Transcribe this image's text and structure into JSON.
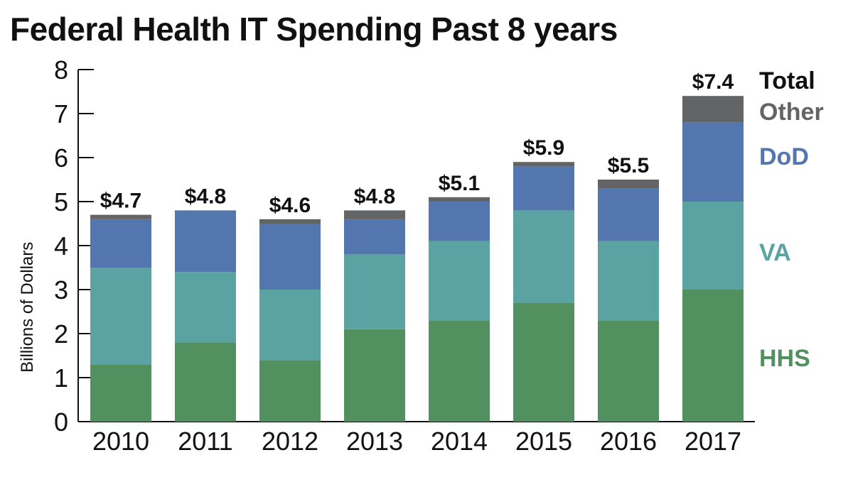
{
  "chart_data": {
    "type": "bar",
    "stacked": true,
    "title": "Federal Health IT Spending Past 8 years",
    "xlabel": "",
    "ylabel": "Billions of Dollars",
    "ylim": [
      0,
      8
    ],
    "yticks": [
      "0",
      "1",
      "2",
      "3",
      "4",
      "5",
      "6",
      "7",
      "8"
    ],
    "categories": [
      "2010",
      "2011",
      "2012",
      "2013",
      "2014",
      "2015",
      "2016",
      "2017"
    ],
    "series": [
      {
        "name": "HHS",
        "color": "#52905f",
        "values": [
          1.3,
          1.8,
          1.4,
          2.1,
          2.3,
          2.7,
          2.3,
          3.0
        ]
      },
      {
        "name": "VA",
        "color": "#5ba3a2",
        "values": [
          2.2,
          1.6,
          1.6,
          1.7,
          1.8,
          2.1,
          1.8,
          2.0
        ]
      },
      {
        "name": "DoD",
        "color": "#5476ae",
        "values": [
          1.1,
          1.4,
          1.5,
          0.8,
          0.9,
          1.0,
          1.2,
          1.8
        ]
      },
      {
        "name": "Other",
        "color": "#636466",
        "values": [
          0.1,
          0.0,
          0.1,
          0.2,
          0.1,
          0.1,
          0.2,
          0.6
        ]
      }
    ],
    "totals_label": "Total",
    "totals": [
      "$4.7",
      "$4.8",
      "$4.6",
      "$4.8",
      "$5.1",
      "$5.9",
      "$5.5",
      "$7.4"
    ],
    "total_values": [
      4.7,
      4.8,
      4.6,
      4.8,
      5.1,
      5.9,
      5.5,
      7.4
    ],
    "legend_position": "right",
    "grid": false
  }
}
